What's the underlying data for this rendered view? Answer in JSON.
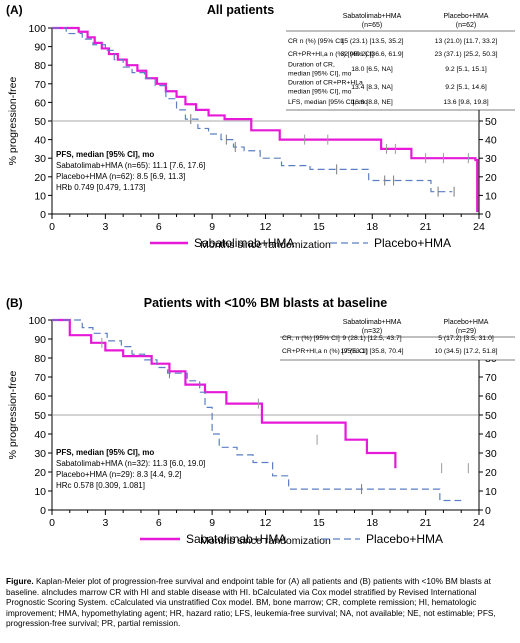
{
  "figure": {
    "caption_label": "Figure.",
    "caption_body": "Kaplan-Meier plot of progression-free survival and endpoint table for (A) all patients and (B) patients with <10% BM blasts at baseline. aIncludes marrow CR with HI and stable disease with HI. bCalculated via Cox model stratified by Revised International Prognostic Scoring System. cCalculated via unstratified Cox model. BM, bone marrow; CR, complete remission; HI, hematologic improvement; HMA, hypomethylating agent; HR, hazard ratio; LFS, leukemia-free survival; NA, not available; NE, not estimable; PFS, progression-free survival; PR, partial remission."
  },
  "colors": {
    "sabatolimab": "#e619d8",
    "placebo": "#5b7fc4",
    "axis": "#000000",
    "refline": "#8c8c8c"
  },
  "chart_data": [
    {
      "type": "line",
      "panel": "(A)",
      "title": "All patients",
      "xlabel": "Months since randomization",
      "ylabel": "% progression-free",
      "xlim": [
        0,
        24
      ],
      "ylim": [
        0,
        100
      ],
      "xticks": [
        0,
        3,
        6,
        9,
        12,
        15,
        18,
        21,
        24
      ],
      "yticks": [
        0,
        10,
        20,
        30,
        40,
        50,
        60,
        70,
        80,
        90,
        100
      ],
      "reference_line_y": 50,
      "series": [
        {
          "name": "Sabatolimab+HMA",
          "style": "solid",
          "x": [
            0,
            1.5,
            2.0,
            2.4,
            2.8,
            3.2,
            3.7,
            4.2,
            4.8,
            5.3,
            5.9,
            6.4,
            7.0,
            7.5,
            8.1,
            8.8,
            9.7,
            11.2,
            12.8,
            18.5,
            20.2,
            23.8,
            23.9
          ],
          "y": [
            100,
            98,
            95,
            92,
            89,
            86,
            83,
            80,
            77,
            73,
            70,
            66,
            63,
            59,
            56,
            53,
            51,
            45,
            40,
            35,
            30,
            29,
            1
          ],
          "censored": [
            [
              14.2,
              40
            ],
            [
              15.5,
              40
            ],
            [
              18.8,
              35
            ],
            [
              19.3,
              35
            ],
            [
              21.0,
              30
            ],
            [
              22.0,
              30
            ],
            [
              23.4,
              30
            ]
          ]
        },
        {
          "name": "Placebo+HMA",
          "style": "dashed",
          "x": [
            0,
            0.8,
            1.7,
            2.3,
            3.0,
            3.5,
            4.0,
            4.5,
            5.2,
            5.8,
            6.4,
            7.0,
            7.5,
            8.2,
            8.8,
            9.5,
            10.2,
            10.8,
            11.7,
            12.9,
            14.5,
            17.8,
            21.3
          ],
          "y": [
            100,
            97,
            94,
            91,
            88,
            83,
            79,
            76,
            73,
            69,
            62,
            56,
            51,
            46,
            43,
            40,
            36,
            34,
            30,
            26,
            24,
            18,
            12
          ],
          "censored": [
            [
              7.8,
              51
            ],
            [
              9.8,
              40
            ],
            [
              10.3,
              36
            ],
            [
              16.0,
              24
            ],
            [
              18.7,
              18
            ],
            [
              19.2,
              18
            ],
            [
              21.7,
              12
            ],
            [
              22.6,
              12
            ]
          ]
        }
      ],
      "pfs_heading": "PFS, median [95% CI], mo",
      "pfs_lines": [
        "Sabatolimab+HMA  (n=65): 11.1 [7.6, 17.6]",
        "Placebo+HMA  (n=62): 8.5 [6.9, 11.3]",
        "HRb 0.749 [0.479, 1.173]"
      ],
      "table": {
        "col1": [
          "Sabatolimab+HMA",
          "(n=65)"
        ],
        "col2": [
          "Placebo+HMA",
          "(n=62)"
        ],
        "rows": [
          {
            "label": [
              "CR n (%) [95% CI]"
            ],
            "v1": "15 (23.1) [13.5, 35.2]",
            "v2": "13 (21.0)  [11.7, 33.2]"
          },
          {
            "label": [
              "CR+PR+HI,a n (%) [95% CI]"
            ],
            "v1": "32 (49.2) [36.6, 61.9]",
            "v2": "23 (37.1) [25.2, 50.3]"
          },
          {
            "label": [
              "Duration of CR,",
              "median [95% CI], mo"
            ],
            "v1": "18.0 [6.5, NA]",
            "v2": "9.2 [5.1, 15.1]"
          },
          {
            "label": [
              "Duration of CR+PR+HI,a",
              "median [95% CI], mo"
            ],
            "v1": "13.4 [8.3, NA]",
            "v2": "9.2 [5.1, 14.6]"
          },
          {
            "label": [
              "LFS, median [95% CI], mo"
            ],
            "v1": "16.8 [8.8, NE]",
            "v2": "13.6 [9.8, 19.8]"
          }
        ]
      }
    },
    {
      "type": "line",
      "panel": "(B)",
      "title": "Patients with <10% BM blasts at baseline",
      "xlabel": "Months since randomization",
      "ylabel": "% progression-free",
      "xlim": [
        0,
        24
      ],
      "ylim": [
        0,
        100
      ],
      "xticks": [
        0,
        3,
        6,
        9,
        12,
        15,
        18,
        21,
        24
      ],
      "yticks": [
        0,
        10,
        20,
        30,
        40,
        50,
        60,
        70,
        80,
        90,
        100
      ],
      "reference_line_y": 50,
      "series": [
        {
          "name": "Sabatolimab+HMA",
          "style": "solid",
          "x": [
            0,
            1.0,
            2.2,
            3.0,
            4.0,
            5.6,
            6.6,
            7.5,
            8.6,
            9.8,
            11.8,
            16.5,
            17.7,
            19.3
          ],
          "y": [
            100,
            92,
            88,
            84,
            81,
            77,
            73,
            66,
            62,
            56,
            46,
            37,
            30,
            22
          ],
          "censored": [
            [
              2.8,
              88
            ],
            [
              11.6,
              56
            ],
            [
              14.9,
              37
            ],
            [
              21.9,
              22
            ],
            [
              23.4,
              22
            ]
          ]
        },
        {
          "name": "Placebo+HMA",
          "style": "dashed",
          "x": [
            0,
            1.7,
            2.3,
            3.1,
            3.9,
            4.5,
            5.2,
            5.9,
            6.5,
            7.6,
            8.3,
            8.6,
            9.0,
            9.4,
            10.4,
            11.3,
            12.4,
            13.3,
            21.8
          ],
          "y": [
            100,
            96,
            93,
            89,
            86,
            82,
            79,
            75,
            72,
            68,
            62,
            54,
            40,
            33,
            29,
            25,
            18,
            11,
            5
          ],
          "censored": [
            [
              6.6,
              72
            ],
            [
              17.4,
              11
            ]
          ]
        }
      ],
      "pfs_heading": "PFS, median [95% CI], mo",
      "pfs_lines": [
        "Sabatolimab+HMA (n=32): 11.3 [6.0, 19.0]",
        "Placebo+HMA (n=29): 8.3 [4.4, 9.2]",
        "HRc 0.578 [0.309, 1.081]"
      ],
      "table": {
        "col1": [
          "Sabatolimab+HMA",
          "(n=32)"
        ],
        "col2": [
          "Placebo+HMA",
          "(n=29)"
        ],
        "rows": [
          {
            "label": [
              "CR, n (%) [95% CI]"
            ],
            "v1": "9 (28.1) [12.5, 43.7]",
            "v2": "5 (17.2) [3.5, 31.0]"
          },
          {
            "label": [
              "CR+PR+HI,a n (%) [95% CI]"
            ],
            "v1": "17 (53.1) [35.8, 70.4]",
            "v2": "10 (34.5) [17.2, 51.8]"
          }
        ]
      }
    }
  ]
}
